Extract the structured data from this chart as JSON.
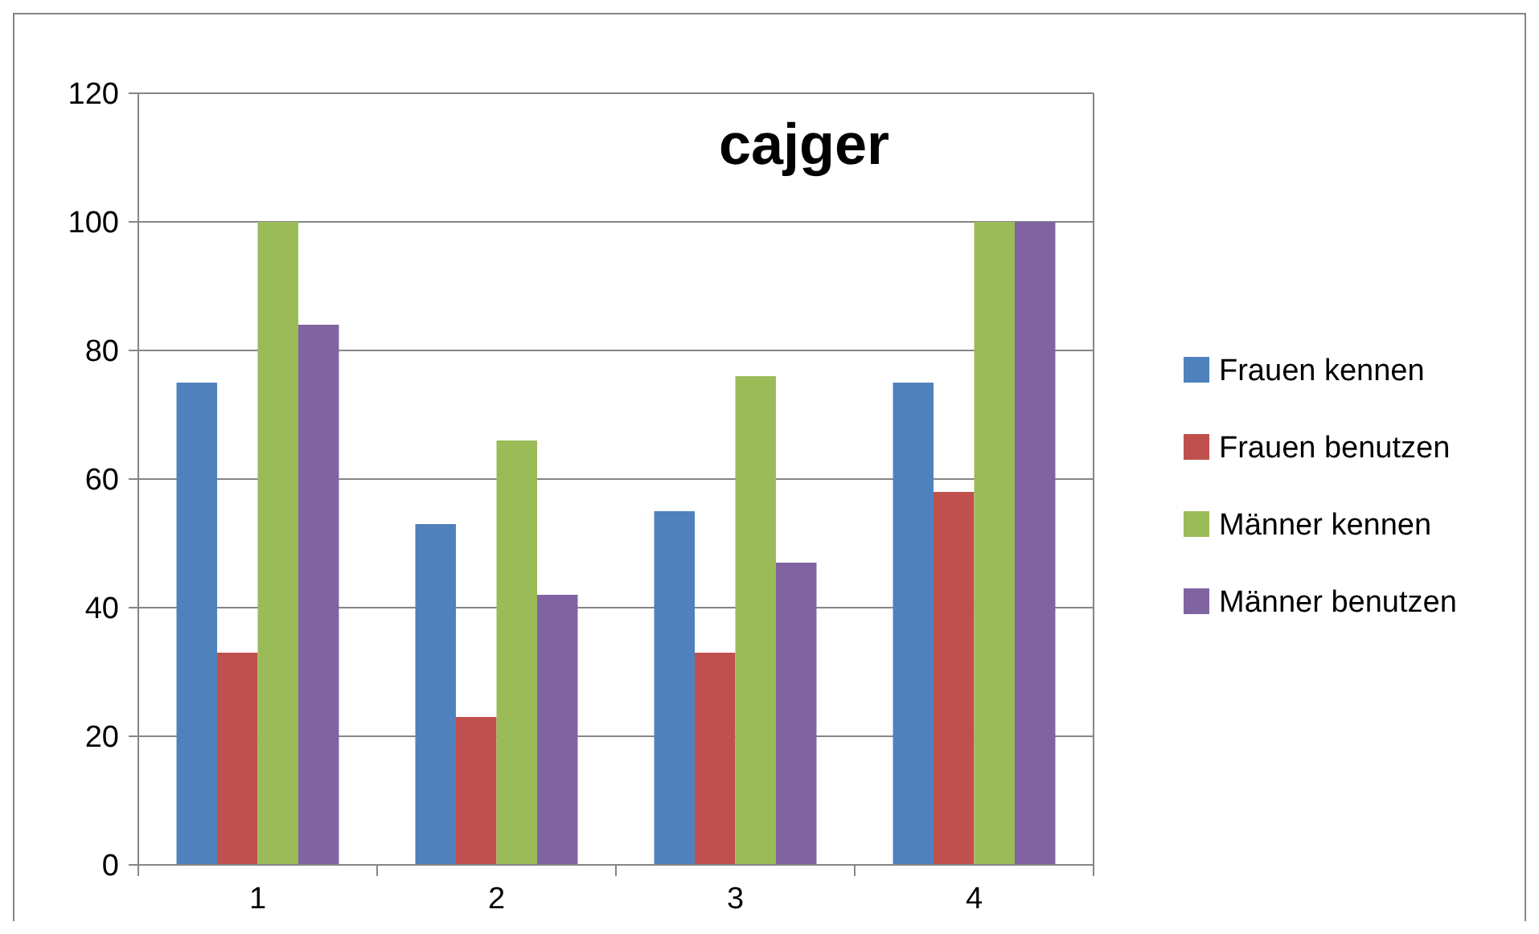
{
  "chart_data": {
    "type": "bar",
    "title": "cajger",
    "categories": [
      "1",
      "2",
      "3",
      "4"
    ],
    "series": [
      {
        "name": "Frauen kennen",
        "color": "#4f81bd",
        "values": [
          75,
          53,
          55,
          75
        ]
      },
      {
        "name": "Frauen benutzen",
        "color": "#c0504d",
        "values": [
          33,
          23,
          33,
          58
        ]
      },
      {
        "name": "Männer kennen",
        "color": "#9bbb59",
        "values": [
          100,
          66,
          76,
          100
        ]
      },
      {
        "name": "Männer benutzen",
        "color": "#8064a2",
        "values": [
          84,
          42,
          47,
          100
        ]
      }
    ],
    "ylim": [
      0,
      120
    ],
    "yticks": [
      0,
      20,
      40,
      60,
      80,
      100,
      120
    ],
    "grid": "y",
    "legend": "right"
  }
}
